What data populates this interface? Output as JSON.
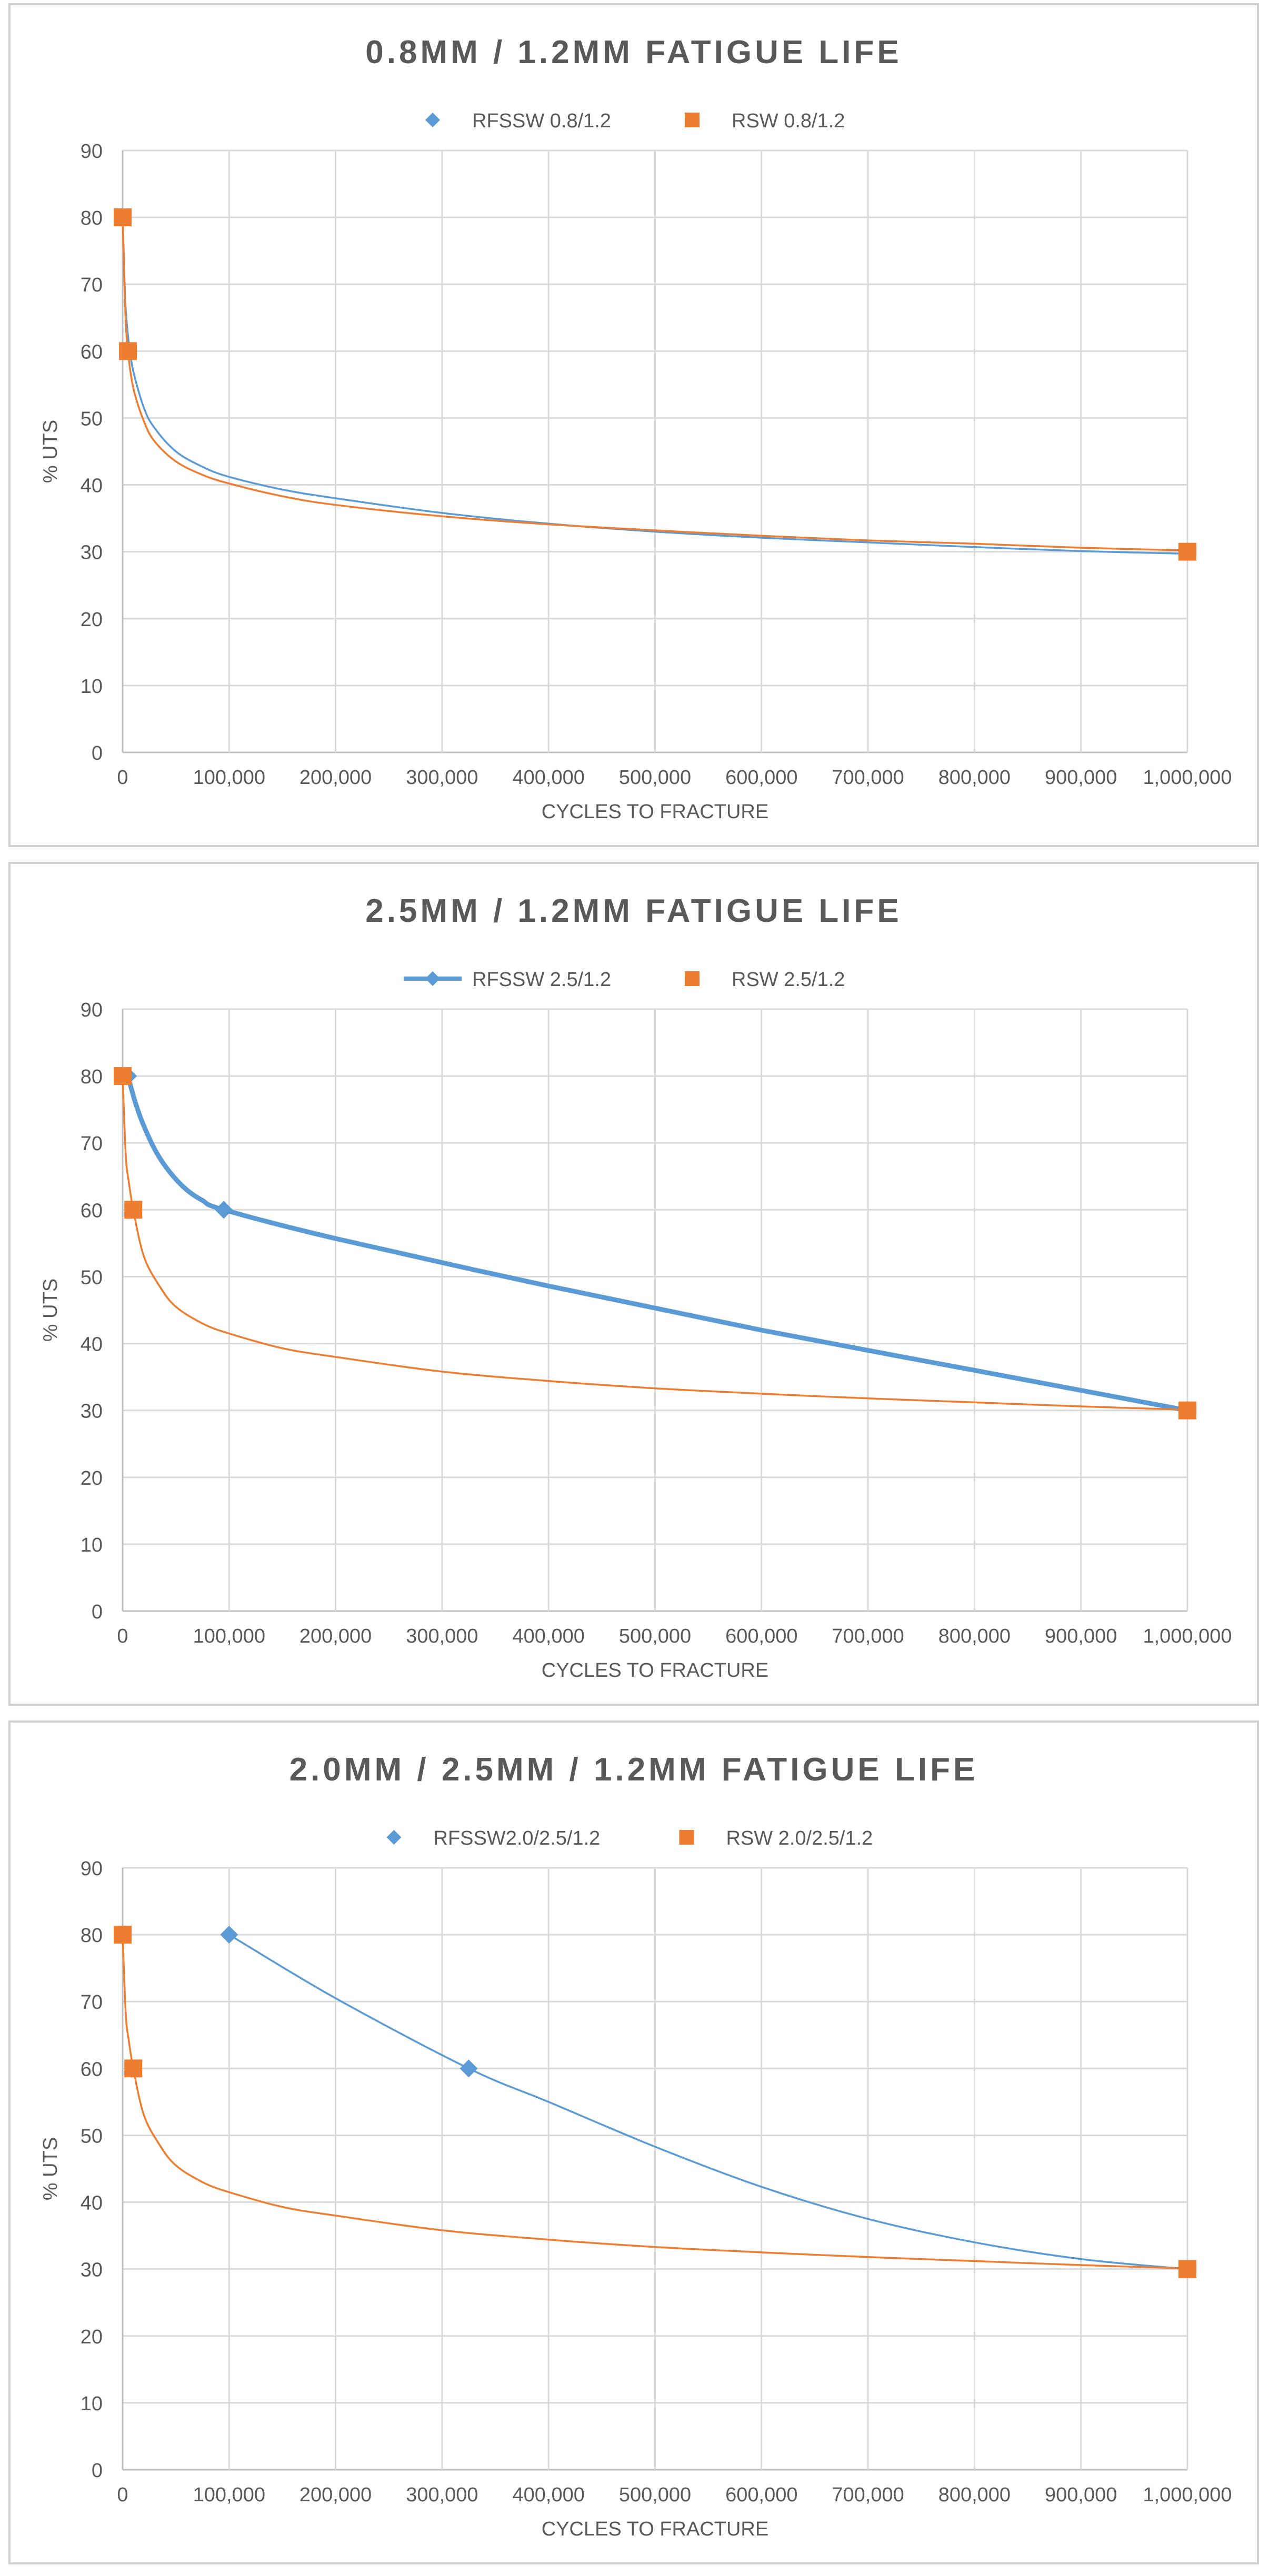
{
  "chart_data": [
    {
      "type": "scatter",
      "title": "0.8MM / 1.2MM FATIGUE LIFE",
      "xlabel": "CYCLES TO FRACTURE",
      "ylabel": "% UTS",
      "xlim": [
        0,
        1000000
      ],
      "ylim": [
        0,
        90
      ],
      "xticks": [
        "0",
        "100,000",
        "200,000",
        "300,000",
        "400,000",
        "500,000",
        "600,000",
        "700,000",
        "800,000",
        "900,000",
        "1,000,000"
      ],
      "yticks": [
        "0",
        "10",
        "20",
        "30",
        "40",
        "50",
        "60",
        "70",
        "80",
        "90"
      ],
      "grid": true,
      "legend_position": "top",
      "series": [
        {
          "name": "RFSSW 0.8/1.2",
          "color": "#5b9bd5",
          "marker": "diamond",
          "marker_points": [],
          "curve": [
            [
              0,
              81
            ],
            [
              1500,
              72
            ],
            [
              3000,
              66
            ],
            [
              6000,
              61
            ],
            [
              10000,
              57
            ],
            [
              20000,
              51.5
            ],
            [
              30000,
              48.5
            ],
            [
              50000,
              45
            ],
            [
              75000,
              42.7
            ],
            [
              100000,
              41.2
            ],
            [
              150000,
              39.3
            ],
            [
              200000,
              38
            ],
            [
              300000,
              35.8
            ],
            [
              400000,
              34.2
            ],
            [
              500000,
              33
            ],
            [
              600000,
              32.1
            ],
            [
              700000,
              31.4
            ],
            [
              800000,
              30.7
            ],
            [
              900000,
              30.1
            ],
            [
              1000000,
              29.7
            ]
          ],
          "line_style": "thin"
        },
        {
          "name": "RSW 0.8/1.2",
          "color": "#ed7d31",
          "marker": "square",
          "marker_points": [
            [
              0,
              80
            ],
            [
              5000,
              60
            ],
            [
              1000000,
              30
            ]
          ],
          "curve": [
            [
              0,
              80
            ],
            [
              2500,
              66
            ],
            [
              5000,
              60
            ],
            [
              10000,
              54.5
            ],
            [
              20000,
              49.5
            ],
            [
              30000,
              46.5
            ],
            [
              50000,
              43.5
            ],
            [
              75000,
              41.5
            ],
            [
              100000,
              40.2
            ],
            [
              150000,
              38.3
            ],
            [
              200000,
              37
            ],
            [
              300000,
              35.3
            ],
            [
              400000,
              34.1
            ],
            [
              500000,
              33.2
            ],
            [
              600000,
              32.4
            ],
            [
              700000,
              31.7
            ],
            [
              800000,
              31.2
            ],
            [
              900000,
              30.6
            ],
            [
              1000000,
              30.2
            ]
          ],
          "line_style": "thin"
        }
      ]
    },
    {
      "type": "scatter",
      "title": "2.5MM / 1.2MM FATIGUE LIFE",
      "xlabel": "CYCLES TO FRACTURE",
      "ylabel": "% UTS",
      "xlim": [
        0,
        1000000
      ],
      "ylim": [
        0,
        90
      ],
      "xticks": [
        "0",
        "100,000",
        "200,000",
        "300,000",
        "400,000",
        "500,000",
        "600,000",
        "700,000",
        "800,000",
        "900,000",
        "1,000,000"
      ],
      "yticks": [
        "0",
        "10",
        "20",
        "30",
        "40",
        "50",
        "60",
        "70",
        "80",
        "90"
      ],
      "grid": true,
      "legend_position": "top",
      "series": [
        {
          "name": "RFSSW 2.5/1.2",
          "color": "#5b9bd5",
          "marker": "diamond",
          "marker_points": [
            [
              5000,
              80
            ],
            [
              95000,
              60
            ],
            [
              1000000,
              30
            ]
          ],
          "curve": [
            [
              5000,
              80
            ],
            [
              12000,
              76
            ],
            [
              20000,
              72.5
            ],
            [
              32000,
              68.5
            ],
            [
              45000,
              65.5
            ],
            [
              60000,
              63
            ],
            [
              75000,
              61.4
            ],
            [
              95000,
              60
            ],
            [
              200000,
              55.7
            ],
            [
              400000,
              48.6
            ],
            [
              600000,
              42
            ],
            [
              800000,
              36
            ],
            [
              1000000,
              30
            ]
          ],
          "line_style": "thick"
        },
        {
          "name": "RSW 2.5/1.2",
          "color": "#ed7d31",
          "marker": "square",
          "marker_points": [
            [
              0,
              80
            ],
            [
              10000,
              60
            ],
            [
              1000000,
              30
            ]
          ],
          "curve": [
            [
              0,
              80
            ],
            [
              3000,
              68
            ],
            [
              6000,
              64
            ],
            [
              10000,
              60
            ],
            [
              20000,
              53
            ],
            [
              35000,
              48.5
            ],
            [
              50000,
              45.5
            ],
            [
              75000,
              43
            ],
            [
              100000,
              41.5
            ],
            [
              150000,
              39.3
            ],
            [
              200000,
              38
            ],
            [
              300000,
              35.8
            ],
            [
              400000,
              34.4
            ],
            [
              500000,
              33.3
            ],
            [
              600000,
              32.5
            ],
            [
              700000,
              31.8
            ],
            [
              800000,
              31.2
            ],
            [
              900000,
              30.6
            ],
            [
              1000000,
              30.1
            ]
          ],
          "line_style": "thin"
        }
      ]
    },
    {
      "type": "scatter",
      "title": "2.0MM / 2.5MM / 1.2MM FATIGUE LIFE",
      "xlabel": "CYCLES TO FRACTURE",
      "ylabel": "% UTS",
      "xlim": [
        0,
        1000000
      ],
      "ylim": [
        0,
        90
      ],
      "xticks": [
        "0",
        "100,000",
        "200,000",
        "300,000",
        "400,000",
        "500,000",
        "600,000",
        "700,000",
        "800,000",
        "900,000",
        "1,000,000"
      ],
      "yticks": [
        "0",
        "10",
        "20",
        "30",
        "40",
        "50",
        "60",
        "70",
        "80",
        "90"
      ],
      "grid": true,
      "legend_position": "top",
      "series": [
        {
          "name": "RFSSW2.0/2.5/1.2",
          "color": "#5b9bd5",
          "marker": "diamond",
          "marker_points": [
            [
              100000,
              80
            ],
            [
              325000,
              60
            ]
          ],
          "curve": [
            [
              100000,
              80
            ],
            [
              200000,
              70.5
            ],
            [
              325000,
              60
            ],
            [
              400000,
              55
            ],
            [
              500000,
              48.3
            ],
            [
              600000,
              42.3
            ],
            [
              700000,
              37.5
            ],
            [
              800000,
              34
            ],
            [
              900000,
              31.5
            ],
            [
              1000000,
              30
            ]
          ],
          "line_style": "thin"
        },
        {
          "name": "RSW 2.0/2.5/1.2",
          "color": "#ed7d31",
          "marker": "square",
          "marker_points": [
            [
              0,
              80
            ],
            [
              10000,
              60
            ],
            [
              1000000,
              30
            ]
          ],
          "curve": [
            [
              0,
              80
            ],
            [
              3000,
              68
            ],
            [
              6000,
              64
            ],
            [
              10000,
              60
            ],
            [
              20000,
              53
            ],
            [
              35000,
              48.5
            ],
            [
              50000,
              45.5
            ],
            [
              75000,
              43
            ],
            [
              100000,
              41.5
            ],
            [
              150000,
              39.3
            ],
            [
              200000,
              38
            ],
            [
              300000,
              35.8
            ],
            [
              400000,
              34.4
            ],
            [
              500000,
              33.3
            ],
            [
              600000,
              32.5
            ],
            [
              700000,
              31.8
            ],
            [
              800000,
              31.2
            ],
            [
              900000,
              30.6
            ],
            [
              1000000,
              30.1
            ]
          ],
          "line_style": "thin"
        }
      ]
    }
  ]
}
